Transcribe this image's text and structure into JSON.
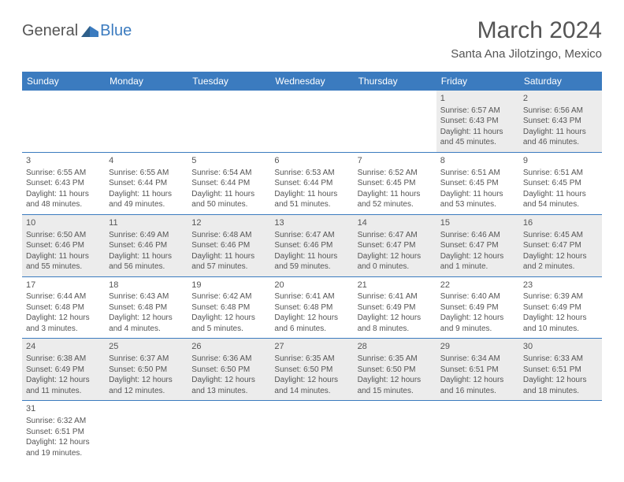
{
  "logo": {
    "general": "General",
    "blue": "Blue"
  },
  "title": "March 2024",
  "location": "Santa Ana Jilotzingo, Mexico",
  "colors": {
    "headerBg": "#3b7bbf",
    "headerText": "#ffffff",
    "rowAlt": "#ececec",
    "border": "#3b7bbf",
    "text": "#555555",
    "logoBlue": "#3b7bbf"
  },
  "dayNames": [
    "Sunday",
    "Monday",
    "Tuesday",
    "Wednesday",
    "Thursday",
    "Friday",
    "Saturday"
  ],
  "weeks": [
    [
      {
        "blank": true,
        "top": true
      },
      {
        "blank": true,
        "top": true
      },
      {
        "blank": true,
        "top": true
      },
      {
        "blank": true,
        "top": true
      },
      {
        "blank": true,
        "top": true
      },
      {
        "day": "1",
        "sunrise": "Sunrise: 6:57 AM",
        "sunset": "Sunset: 6:43 PM",
        "daylight": "Daylight: 11 hours and 45 minutes."
      },
      {
        "day": "2",
        "sunrise": "Sunrise: 6:56 AM",
        "sunset": "Sunset: 6:43 PM",
        "daylight": "Daylight: 11 hours and 46 minutes."
      }
    ],
    [
      {
        "day": "3",
        "sunrise": "Sunrise: 6:55 AM",
        "sunset": "Sunset: 6:43 PM",
        "daylight": "Daylight: 11 hours and 48 minutes."
      },
      {
        "day": "4",
        "sunrise": "Sunrise: 6:55 AM",
        "sunset": "Sunset: 6:44 PM",
        "daylight": "Daylight: 11 hours and 49 minutes."
      },
      {
        "day": "5",
        "sunrise": "Sunrise: 6:54 AM",
        "sunset": "Sunset: 6:44 PM",
        "daylight": "Daylight: 11 hours and 50 minutes."
      },
      {
        "day": "6",
        "sunrise": "Sunrise: 6:53 AM",
        "sunset": "Sunset: 6:44 PM",
        "daylight": "Daylight: 11 hours and 51 minutes."
      },
      {
        "day": "7",
        "sunrise": "Sunrise: 6:52 AM",
        "sunset": "Sunset: 6:45 PM",
        "daylight": "Daylight: 11 hours and 52 minutes."
      },
      {
        "day": "8",
        "sunrise": "Sunrise: 6:51 AM",
        "sunset": "Sunset: 6:45 PM",
        "daylight": "Daylight: 11 hours and 53 minutes."
      },
      {
        "day": "9",
        "sunrise": "Sunrise: 6:51 AM",
        "sunset": "Sunset: 6:45 PM",
        "daylight": "Daylight: 11 hours and 54 minutes."
      }
    ],
    [
      {
        "day": "10",
        "sunrise": "Sunrise: 6:50 AM",
        "sunset": "Sunset: 6:46 PM",
        "daylight": "Daylight: 11 hours and 55 minutes."
      },
      {
        "day": "11",
        "sunrise": "Sunrise: 6:49 AM",
        "sunset": "Sunset: 6:46 PM",
        "daylight": "Daylight: 11 hours and 56 minutes."
      },
      {
        "day": "12",
        "sunrise": "Sunrise: 6:48 AM",
        "sunset": "Sunset: 6:46 PM",
        "daylight": "Daylight: 11 hours and 57 minutes."
      },
      {
        "day": "13",
        "sunrise": "Sunrise: 6:47 AM",
        "sunset": "Sunset: 6:46 PM",
        "daylight": "Daylight: 11 hours and 59 minutes."
      },
      {
        "day": "14",
        "sunrise": "Sunrise: 6:47 AM",
        "sunset": "Sunset: 6:47 PM",
        "daylight": "Daylight: 12 hours and 0 minutes."
      },
      {
        "day": "15",
        "sunrise": "Sunrise: 6:46 AM",
        "sunset": "Sunset: 6:47 PM",
        "daylight": "Daylight: 12 hours and 1 minute."
      },
      {
        "day": "16",
        "sunrise": "Sunrise: 6:45 AM",
        "sunset": "Sunset: 6:47 PM",
        "daylight": "Daylight: 12 hours and 2 minutes."
      }
    ],
    [
      {
        "day": "17",
        "sunrise": "Sunrise: 6:44 AM",
        "sunset": "Sunset: 6:48 PM",
        "daylight": "Daylight: 12 hours and 3 minutes."
      },
      {
        "day": "18",
        "sunrise": "Sunrise: 6:43 AM",
        "sunset": "Sunset: 6:48 PM",
        "daylight": "Daylight: 12 hours and 4 minutes."
      },
      {
        "day": "19",
        "sunrise": "Sunrise: 6:42 AM",
        "sunset": "Sunset: 6:48 PM",
        "daylight": "Daylight: 12 hours and 5 minutes."
      },
      {
        "day": "20",
        "sunrise": "Sunrise: 6:41 AM",
        "sunset": "Sunset: 6:48 PM",
        "daylight": "Daylight: 12 hours and 6 minutes."
      },
      {
        "day": "21",
        "sunrise": "Sunrise: 6:41 AM",
        "sunset": "Sunset: 6:49 PM",
        "daylight": "Daylight: 12 hours and 8 minutes."
      },
      {
        "day": "22",
        "sunrise": "Sunrise: 6:40 AM",
        "sunset": "Sunset: 6:49 PM",
        "daylight": "Daylight: 12 hours and 9 minutes."
      },
      {
        "day": "23",
        "sunrise": "Sunrise: 6:39 AM",
        "sunset": "Sunset: 6:49 PM",
        "daylight": "Daylight: 12 hours and 10 minutes."
      }
    ],
    [
      {
        "day": "24",
        "sunrise": "Sunrise: 6:38 AM",
        "sunset": "Sunset: 6:49 PM",
        "daylight": "Daylight: 12 hours and 11 minutes."
      },
      {
        "day": "25",
        "sunrise": "Sunrise: 6:37 AM",
        "sunset": "Sunset: 6:50 PM",
        "daylight": "Daylight: 12 hours and 12 minutes."
      },
      {
        "day": "26",
        "sunrise": "Sunrise: 6:36 AM",
        "sunset": "Sunset: 6:50 PM",
        "daylight": "Daylight: 12 hours and 13 minutes."
      },
      {
        "day": "27",
        "sunrise": "Sunrise: 6:35 AM",
        "sunset": "Sunset: 6:50 PM",
        "daylight": "Daylight: 12 hours and 14 minutes."
      },
      {
        "day": "28",
        "sunrise": "Sunrise: 6:35 AM",
        "sunset": "Sunset: 6:50 PM",
        "daylight": "Daylight: 12 hours and 15 minutes."
      },
      {
        "day": "29",
        "sunrise": "Sunrise: 6:34 AM",
        "sunset": "Sunset: 6:51 PM",
        "daylight": "Daylight: 12 hours and 16 minutes."
      },
      {
        "day": "30",
        "sunrise": "Sunrise: 6:33 AM",
        "sunset": "Sunset: 6:51 PM",
        "daylight": "Daylight: 12 hours and 18 minutes."
      }
    ],
    [
      {
        "day": "31",
        "sunrise": "Sunrise: 6:32 AM",
        "sunset": "Sunset: 6:51 PM",
        "daylight": "Daylight: 12 hours and 19 minutes."
      },
      {
        "blank": true
      },
      {
        "blank": true
      },
      {
        "blank": true
      },
      {
        "blank": true
      },
      {
        "blank": true
      },
      {
        "blank": true
      }
    ]
  ]
}
